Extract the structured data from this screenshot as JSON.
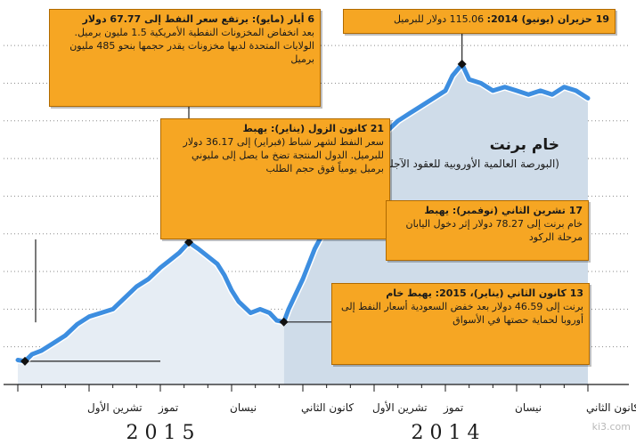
{
  "chart_data": {
    "type": "line",
    "title": "خام برنت",
    "subtitle": "(البورصة العالمية الأوروبية للعقود الآجلة)",
    "xlabel": "",
    "ylabel": "",
    "x_axis": "time",
    "x_direction": "right-to-left",
    "x_tick_labels": [
      {
        "label": "كانون الثاني",
        "month_index": 0
      },
      {
        "label": "نيسان",
        "month_index": 3
      },
      {
        "label": "تموز",
        "month_index": 6
      },
      {
        "label": "تشرين الأول",
        "month_index": 9
      },
      {
        "label": "كانون الثاني",
        "month_index": 12
      },
      {
        "label": "نيسان",
        "month_index": 15
      },
      {
        "label": "تموز",
        "month_index": 18
      },
      {
        "label": "تشرين الأول",
        "month_index": 21
      }
    ],
    "year_labels": [
      {
        "label": "2014",
        "month_index": 6
      },
      {
        "label": "2015",
        "month_index": 18
      }
    ],
    "ylim": [
      30,
      125
    ],
    "grid": true,
    "series": [
      {
        "values": [
          {
            "x": 0.0,
            "y": 106
          },
          {
            "x": 0.5,
            "y": 108
          },
          {
            "x": 1.0,
            "y": 109
          },
          {
            "x": 1.5,
            "y": 107
          },
          {
            "x": 2.0,
            "y": 108
          },
          {
            "x": 2.5,
            "y": 107
          },
          {
            "x": 3.0,
            "y": 108
          },
          {
            "x": 3.5,
            "y": 109
          },
          {
            "x": 4.0,
            "y": 108
          },
          {
            "x": 4.5,
            "y": 110
          },
          {
            "x": 5.0,
            "y": 111
          },
          {
            "x": 5.3,
            "y": 115.06
          },
          {
            "x": 5.7,
            "y": 112
          },
          {
            "x": 6.0,
            "y": 108
          },
          {
            "x": 6.5,
            "y": 106
          },
          {
            "x": 7.0,
            "y": 104
          },
          {
            "x": 7.5,
            "y": 102
          },
          {
            "x": 8.0,
            "y": 100
          },
          {
            "x": 8.5,
            "y": 97
          },
          {
            "x": 9.0,
            "y": 92
          },
          {
            "x": 9.5,
            "y": 88
          },
          {
            "x": 10.0,
            "y": 86
          },
          {
            "x": 10.3,
            "y": 83
          },
          {
            "x": 10.5,
            "y": 78.27
          },
          {
            "x": 10.8,
            "y": 76
          },
          {
            "x": 11.0,
            "y": 72
          },
          {
            "x": 11.5,
            "y": 66
          },
          {
            "x": 12.0,
            "y": 58
          },
          {
            "x": 12.3,
            "y": 54
          },
          {
            "x": 12.6,
            "y": 50
          },
          {
            "x": 12.8,
            "y": 46.59
          },
          {
            "x": 13.1,
            "y": 47
          },
          {
            "x": 13.4,
            "y": 49
          },
          {
            "x": 13.8,
            "y": 50
          },
          {
            "x": 14.2,
            "y": 49
          },
          {
            "x": 14.7,
            "y": 52
          },
          {
            "x": 15.0,
            "y": 55
          },
          {
            "x": 15.3,
            "y": 59
          },
          {
            "x": 15.6,
            "y": 62
          },
          {
            "x": 16.0,
            "y": 64
          },
          {
            "x": 16.4,
            "y": 66
          },
          {
            "x": 16.8,
            "y": 67.77
          },
          {
            "x": 17.2,
            "y": 65
          },
          {
            "x": 17.6,
            "y": 63
          },
          {
            "x": 18.0,
            "y": 61
          },
          {
            "x": 18.5,
            "y": 58
          },
          {
            "x": 19.0,
            "y": 56
          },
          {
            "x": 19.5,
            "y": 53
          },
          {
            "x": 20.0,
            "y": 50
          },
          {
            "x": 20.5,
            "y": 49
          },
          {
            "x": 21.0,
            "y": 48
          },
          {
            "x": 21.5,
            "y": 46
          },
          {
            "x": 22.0,
            "y": 43
          },
          {
            "x": 22.5,
            "y": 41
          },
          {
            "x": 23.0,
            "y": 39
          },
          {
            "x": 23.4,
            "y": 38
          },
          {
            "x": 23.7,
            "y": 36.17
          },
          {
            "x": 24.0,
            "y": 36.5
          }
        ]
      }
    ],
    "annotations": [
      {
        "x": 5.3,
        "y": 115.06,
        "heading": "19 حزيران (يونيو) 2014:",
        "text": "115.06 دولار للبرميل"
      },
      {
        "x": 10.5,
        "y": 78.27,
        "heading": "17 تشرين الثاني (نوفمبر): يهبط",
        "text": "خام برنت إلى 78.27 دولار إثر دخول اليابان مرحلة الركود"
      },
      {
        "x": 12.8,
        "y": 46.59,
        "heading": "13 كانون الثاني (يناير)، 2015: يهبط خام",
        "text": "برنت إلى 46.59 دولار بعد خفض السعودية أسعار النفط إلى أوروبا لحماية حصتها في الأسواق"
      },
      {
        "x": 16.8,
        "y": 67.77,
        "heading": "6 أيار (مايو): يرتفع سعر النفط إلى 67.77 دولار",
        "text": "بعد انخفاض المخزونات النفطية الأمريكية 1.5 مليون برميل. الولايات المتحدة لديها مخزونات يقدر حجمها بنحو 485 مليون برميل"
      },
      {
        "x": 23.7,
        "y": 36.17,
        "heading": "21 كانون الزول (يناير): يهبط",
        "text": "سعر النفط لشهر شباط (فبراير) إلى 36.17 دولار للبرميل. الدول المنتجة تضخ ما يصل إلى مليوني برميل يومياً فوق حجم الطلب"
      }
    ]
  },
  "style": {
    "line_color": "#3d8ee0",
    "line_edge_color": "#ffffff",
    "fill_color_recent": "#cfdce9",
    "fill_color_early": "#e6edf4",
    "grid_color": "#8a8a8a",
    "callout_color": "#f6a623",
    "marker_color": "#111111"
  },
  "watermark": "ki3.com"
}
